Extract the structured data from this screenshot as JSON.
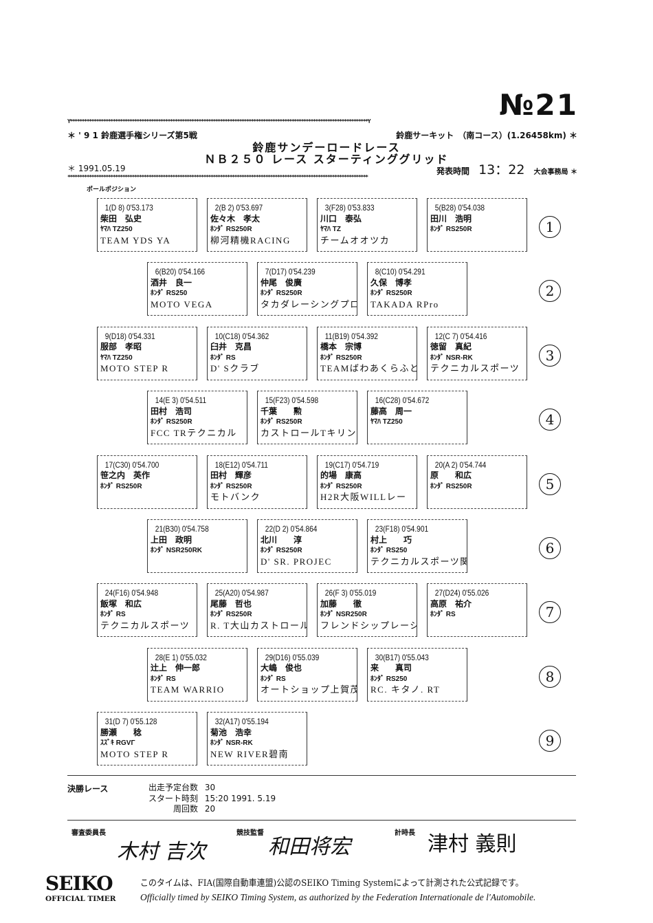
{
  "doc_number": "№21",
  "header": {
    "series": "＊ ' 9 1 鈴鹿選手権シリーズ第5戦",
    "circuit": "鈴鹿サーキット　（南コース）(1.26458km) ＊",
    "title": "鈴鹿サンデーロードレース",
    "subtitle": "ＮＢ２５０ レース スターティンググリッド",
    "date": "＊ 1991.05.19",
    "announce_label": "発表時間",
    "announce_time": "13：22",
    "office": "大会事務局 ＊",
    "stars_row": "Y*****************************************************************************************************************************Y",
    "stars_row2": "******************************************************************************************************************************",
    "pole_label": "ポールポジション"
  },
  "grid_rows": [
    {
      "row": "1",
      "entries": [
        {
          "l1": "1(D 8)  0'53.173",
          "rider": "柴田　弘史",
          "machine": "ﾔﾏﾊ TZ250",
          "team": "TEAM YDS YA"
        },
        {
          "l1": "2(B 2)  0'53.697",
          "rider": "佐々木　孝太",
          "machine": "ﾎﾝﾀﾞ RS250R",
          "team": "柳河精機RACING"
        },
        {
          "l1": "3(F28)  0'53.833",
          "rider": "川口　泰弘",
          "machine": "ﾔﾏﾊ TZ",
          "team": "チームオオツカ"
        },
        {
          "l1": "5(B28)  0'54.038",
          "rider": "田川　浩明",
          "machine": "ﾎﾝﾀﾞ RS250R",
          "team": ""
        }
      ]
    },
    {
      "row": "2",
      "entries": [
        {
          "l1": "6(B20)  0'54.166",
          "rider": "酒井　良一",
          "machine": "ﾎﾝﾀﾞ RS250",
          "team": "MOTO VEGA"
        },
        {
          "l1": "7(D17)  0'54.239",
          "rider": "仲尾　俊廣",
          "machine": "ﾎﾝﾀﾞ RS250R",
          "team": "タカダレーシングプロジ"
        },
        {
          "l1": "8(C10)  0'54.291",
          "rider": "久保　博孝",
          "machine": "ﾎﾝﾀﾞ RS250R",
          "team": "TAKADA RPro"
        }
      ]
    },
    {
      "row": "3",
      "entries": [
        {
          "l1": "9(D18)  0'54.331",
          "rider": "服部　孝昭",
          "machine": "ﾔﾏﾊ TZ250",
          "team": "MOTO STEP R"
        },
        {
          "l1": "10(C18)  0'54.362",
          "rider": "臼井　克昌",
          "machine": "ﾎﾝﾀﾞ RS",
          "team": "D' Sクラブ"
        },
        {
          "l1": "11(B19)  0'54.392",
          "rider": "橋本　宗博",
          "machine": "ﾎﾝﾀﾞ RS250R",
          "team": "TEAMばわあくらふと"
        },
        {
          "l1": "12(C 7)  0'54.416",
          "rider": "徳留　真紀",
          "machine": "ﾎﾝﾀﾞ NSR-RK",
          "team": "テクニカルスポーツ"
        }
      ]
    },
    {
      "row": "4",
      "entries": [
        {
          "l1": "14(E 3)  0'54.511",
          "rider": "田村　浩司",
          "machine": "ﾎﾝﾀﾞ RS250R",
          "team": "FCC TRテクニカル"
        },
        {
          "l1": "15(F23)  0'54.598",
          "rider": "千葉　　勲",
          "machine": "ﾎﾝﾀﾞ RS250R",
          "team": "カストロールTキリング"
        },
        {
          "l1": "16(C28)  0'54.672",
          "rider": "藤高　周一",
          "machine": "ﾔﾏﾊ TZ250",
          "team": ""
        }
      ]
    },
    {
      "row": "5",
      "entries": [
        {
          "l1": "17(C30)  0'54.700",
          "rider": "笹之内　英作",
          "machine": "ﾎﾝﾀﾞ RS250R",
          "team": ""
        },
        {
          "l1": "18(E12)  0'54.711",
          "rider": "田村　輝彦",
          "machine": "ﾎﾝﾀﾞ RS250R",
          "team": "モトバンク"
        },
        {
          "l1": "19(C17)  0'54.719",
          "rider": "的場　康高",
          "machine": "ﾎﾝﾀﾞ RS250R",
          "team": "H2R大阪WILLレー"
        },
        {
          "l1": "20(A 2)  0'54.744",
          "rider": "原　　和広",
          "machine": "ﾎﾝﾀﾞ RS250R",
          "team": ""
        }
      ]
    },
    {
      "row": "6",
      "entries": [
        {
          "l1": "21(B30)  0'54.758",
          "rider": "上田　政明",
          "machine": "ﾎﾝﾀﾞ NSR250RK",
          "team": ""
        },
        {
          "l1": "22(D 2)  0'54.864",
          "rider": "北川　　淳",
          "machine": "ﾎﾝﾀﾞ RS250R",
          "team": "D' SR. PROJEC"
        },
        {
          "l1": "23(F18)  0'54.901",
          "rider": "村上　　巧",
          "machine": "ﾎﾝﾀﾞ RS250",
          "team": "テクニカルスポーツ関東"
        }
      ]
    },
    {
      "row": "7",
      "entries": [
        {
          "l1": "24(F16)  0'54.948",
          "rider": "飯塚　和広",
          "machine": "ﾎﾝﾀﾞ RS",
          "team": "テクニカルスポーツ"
        },
        {
          "l1": "25(A20)  0'54.987",
          "rider": "尾藤　哲也",
          "machine": "ﾎﾝﾀﾞ RS250R",
          "team": "R. T大山カストロール"
        },
        {
          "l1": "26(F 3)  0'55.019",
          "rider": "加藤　　徹",
          "machine": "ﾎﾝﾀﾞ NSR250R",
          "team": "フレンドシップレーシン"
        },
        {
          "l1": "27(D24)  0'55.026",
          "rider": "高原　祐介",
          "machine": "ﾎﾝﾀﾞ RS",
          "team": ""
        }
      ]
    },
    {
      "row": "8",
      "entries": [
        {
          "l1": "28(E 1)  0'55.032",
          "rider": "辻上　伸一郎",
          "machine": "ﾎﾝﾀﾞ RS",
          "team": "TEAM WARRIO"
        },
        {
          "l1": "29(D16)  0'55.039",
          "rider": "大嶋　俊也",
          "machine": "ﾎﾝﾀﾞ RS",
          "team": "オートショップ上賀茂K"
        },
        {
          "l1": "30(B17)  0'55.043",
          "rider": "来　　真司",
          "machine": "ﾎﾝﾀﾞ RS250",
          "team": "RC. キタノ. RT"
        }
      ]
    },
    {
      "row": "9",
      "entries": [
        {
          "l1": "31(D 7)  0'55.128",
          "rider": "勝瀬　　稔",
          "machine": "ｽｽﾞｷ RGVΓ",
          "team": "MOTO STEP R"
        },
        {
          "l1": "32(A17)  0'55.194",
          "rider": "菊池　浩幸",
          "machine": "ﾎﾝﾀﾞ NSR-RK",
          "team": "NEW RIVER碧南"
        }
      ]
    }
  ],
  "final_race": {
    "label": "決勝レース",
    "starters_label": "出走予定台数",
    "starters": "30",
    "start_label": "スタート時刻",
    "start": "15:20 1991. 5.19",
    "laps_label": "周回数",
    "laps": "20"
  },
  "officials": [
    {
      "title": "審査委員長",
      "signature": "木村 吉次"
    },
    {
      "title": "競技監督",
      "signature": "和田将宏"
    },
    {
      "title": "計時長",
      "signature": "津村 義則"
    }
  ],
  "footer": {
    "logo": "SEIKO",
    "logo_sub": "OFFICIAL TIMER",
    "jp_note": "このタイムは、FIA(国際自動車連盟)公認のSEIKO Timing Systemによって計測された公式記録です。",
    "en_note": "Officially timed by SEIKO Timing System, as authorized by the Federation Internationale de l'Automobile."
  }
}
